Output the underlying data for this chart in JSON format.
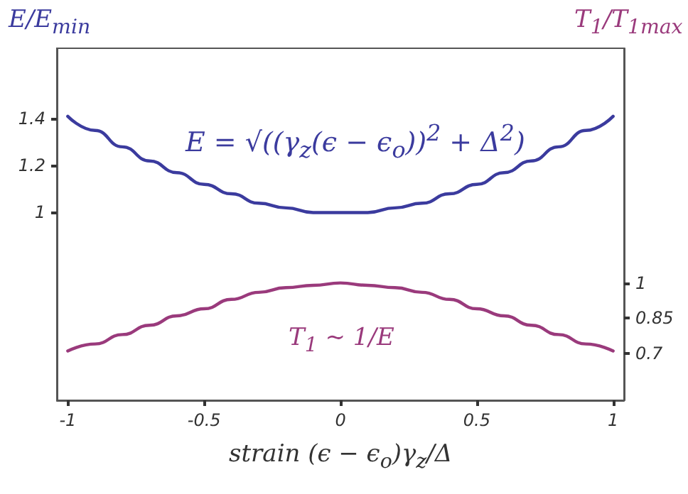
{
  "chart_data": {
    "type": "line",
    "xlabel": "strain (ϵ − ϵ$_{o}$)γ$_{z}$/Δ",
    "ylabel": "E/E$_{min}$",
    "y2label": "T$_{1}$/T$_{1max}$",
    "annotations": [
      "E = √((γ$_{z}$(ϵ − ϵ$_{o}$))$^{2}$ + Δ$^{2}$)",
      "T$_{1}$ ~ 1/E"
    ],
    "x": [
      -1,
      -0.9,
      -0.8,
      -0.7,
      -0.6,
      -0.5,
      -0.4,
      -0.3,
      -0.2,
      -0.1,
      0,
      0.1,
      0.2,
      0.3,
      0.4,
      0.5,
      0.6,
      0.7,
      0.8,
      0.9,
      1
    ],
    "series": [
      {
        "color": "#3b3b9e",
        "values": [
          1.41,
          1.35,
          1.28,
          1.22,
          1.17,
          1.12,
          1.08,
          1.04,
          1.02,
          1.0,
          1.0,
          1.0,
          1.02,
          1.04,
          1.08,
          1.12,
          1.17,
          1.22,
          1.28,
          1.35,
          1.41
        ]
      },
      {
        "color": "#9a3a7c",
        "axis": "y2",
        "values": [
          0.71,
          0.74,
          0.78,
          0.82,
          0.86,
          0.89,
          0.93,
          0.96,
          0.98,
          0.99,
          1.0,
          0.99,
          0.98,
          0.96,
          0.93,
          0.89,
          0.86,
          0.82,
          0.78,
          0.74,
          0.71
        ]
      }
    ],
    "xlim": [
      -1.04,
      1.04
    ],
    "xticks": [
      -1,
      -0.5,
      0,
      0.5,
      1
    ],
    "ylim": [
      0.2,
      1.7
    ],
    "yticks": [
      1,
      1.2,
      1.4
    ],
    "y2lim": [
      0.5,
      2.0
    ],
    "y2ticks": [
      0.7,
      0.85,
      1
    ],
    "grid": false,
    "marker": "none",
    "line_style": "solid"
  }
}
